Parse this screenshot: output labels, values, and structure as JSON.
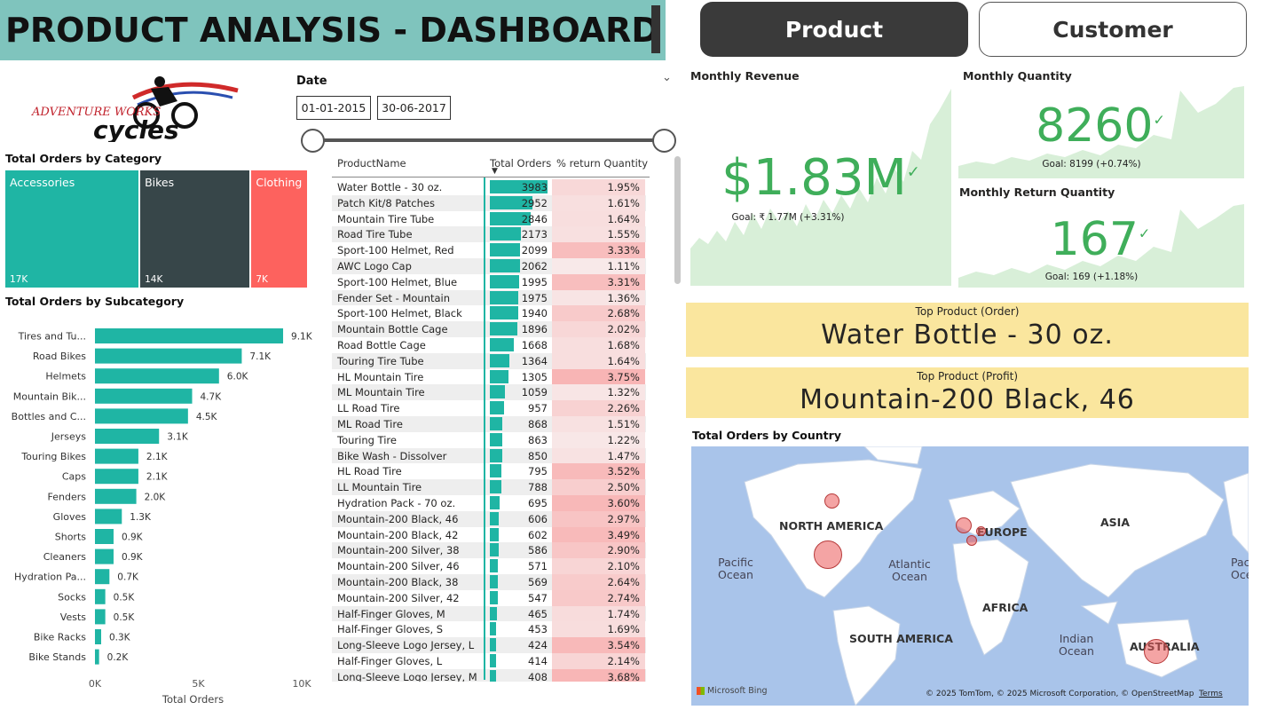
{
  "header": {
    "title": "PRODUCT ANALYSIS - DASHBOARD",
    "nav_product": "Product",
    "nav_customer": "Customer"
  },
  "logo": {
    "line1": "ADVENTURE WORKS",
    "line2": "cycles"
  },
  "date_slicer": {
    "label": "Date",
    "start": "01-01-2015",
    "end": "30-06-2017",
    "range_fraction": [
      0.0,
      1.0
    ]
  },
  "category": {
    "title": "Total Orders by Category",
    "items": [
      {
        "name": "Accessories",
        "label": "17K",
        "value": 17,
        "color": "#1fb5a4"
      },
      {
        "name": "Bikes",
        "label": "14K",
        "value": 14,
        "color": "#374649"
      },
      {
        "name": "Clothing",
        "label": "7K",
        "value": 7,
        "color": "#fd625e"
      }
    ]
  },
  "chart_data": {
    "type": "bar",
    "title": "Total Orders by Subcategory",
    "xlabel": "Total Orders",
    "ylabel": "",
    "xlim": [
      0,
      10000
    ],
    "x_ticks": [
      "0K",
      "5K",
      "10K"
    ],
    "categories": [
      "Tires and Tu...",
      "Road Bikes",
      "Helmets",
      "Mountain Bik...",
      "Bottles and C...",
      "Jerseys",
      "Touring Bikes",
      "Caps",
      "Fenders",
      "Gloves",
      "Shorts",
      "Cleaners",
      "Hydration Pa...",
      "Socks",
      "Vests",
      "Bike Racks",
      "Bike Stands"
    ],
    "values": [
      9100,
      7100,
      6000,
      4700,
      4500,
      3100,
      2100,
      2100,
      2000,
      1300,
      900,
      900,
      700,
      500,
      500,
      300,
      200
    ],
    "data_labels": [
      "9.1K",
      "7.1K",
      "6.0K",
      "4.7K",
      "4.5K",
      "3.1K",
      "2.1K",
      "2.1K",
      "2.0K",
      "1.3K",
      "0.9K",
      "0.9K",
      "0.7K",
      "0.5K",
      "0.5K",
      "0.3K",
      "0.2K"
    ],
    "color": "#1fb5a4"
  },
  "table": {
    "headers": [
      "ProductName",
      "Total Orders",
      "% return Quantity"
    ],
    "max_orders": 3983,
    "rows": [
      [
        "Water Bottle - 30 oz.",
        "3983",
        "1.95%"
      ],
      [
        "Patch Kit/8 Patches",
        "2952",
        "1.61%"
      ],
      [
        "Mountain Tire Tube",
        "2846",
        "1.64%"
      ],
      [
        "Road Tire Tube",
        "2173",
        "1.55%"
      ],
      [
        "Sport-100 Helmet, Red",
        "2099",
        "3.33%"
      ],
      [
        "AWC Logo Cap",
        "2062",
        "1.11%"
      ],
      [
        "Sport-100 Helmet, Blue",
        "1995",
        "3.31%"
      ],
      [
        "Fender Set - Mountain",
        "1975",
        "1.36%"
      ],
      [
        "Sport-100 Helmet, Black",
        "1940",
        "2.68%"
      ],
      [
        "Mountain Bottle Cage",
        "1896",
        "2.02%"
      ],
      [
        "Road Bottle Cage",
        "1668",
        "1.68%"
      ],
      [
        "Touring Tire Tube",
        "1364",
        "1.64%"
      ],
      [
        "HL Mountain Tire",
        "1305",
        "3.75%"
      ],
      [
        "ML Mountain Tire",
        "1059",
        "1.32%"
      ],
      [
        "LL Road Tire",
        "957",
        "2.26%"
      ],
      [
        "ML Road Tire",
        "868",
        "1.51%"
      ],
      [
        "Touring Tire",
        "863",
        "1.22%"
      ],
      [
        "Bike Wash - Dissolver",
        "850",
        "1.47%"
      ],
      [
        "HL Road Tire",
        "795",
        "3.52%"
      ],
      [
        "LL Mountain Tire",
        "788",
        "2.50%"
      ],
      [
        "Hydration Pack - 70 oz.",
        "695",
        "3.60%"
      ],
      [
        "Mountain-200 Black, 46",
        "606",
        "2.97%"
      ],
      [
        "Mountain-200 Black, 42",
        "602",
        "3.49%"
      ],
      [
        "Mountain-200 Silver, 38",
        "586",
        "2.90%"
      ],
      [
        "Mountain-200 Silver, 46",
        "571",
        "2.10%"
      ],
      [
        "Mountain-200 Black, 38",
        "569",
        "2.64%"
      ],
      [
        "Mountain-200 Silver, 42",
        "547",
        "2.74%"
      ],
      [
        "Half-Finger Gloves, M",
        "465",
        "1.74%"
      ],
      [
        "Half-Finger Gloves, S",
        "453",
        "1.69%"
      ],
      [
        "Long-Sleeve Logo Jersey, L",
        "424",
        "3.54%"
      ],
      [
        "Half-Finger Gloves, L",
        "414",
        "2.14%"
      ],
      [
        "Long-Sleeve Logo Jersey, M",
        "408",
        "3.68%"
      ]
    ]
  },
  "kpi": {
    "revenue": {
      "title": "Monthly Revenue",
      "value": "$1.83M",
      "goal": "Goal: ₹ 1.77M (+3.31%)"
    },
    "quantity": {
      "title": "Monthly Quantity",
      "value": "8260",
      "goal": "Goal: 8199 (+0.74%)"
    },
    "returns": {
      "title": "Monthly Return Quantity",
      "value": "167",
      "goal": "Goal: 169 (+1.18%)"
    },
    "check": "✓"
  },
  "top_product_order": {
    "label": "Top Product (Order)",
    "value": "Water Bottle - 30 oz."
  },
  "top_product_profit": {
    "label": "Top Product (Profit)",
    "value": "Mountain-200 Black, 46"
  },
  "map": {
    "title": "Total Orders by Country",
    "continents": [
      "NORTH AMERICA",
      "EUROPE",
      "ASIA",
      "AFRICA",
      "SOUTH AMERICA",
      "AUSTRALIA"
    ],
    "oceans": [
      "Pacific Ocean",
      "Atlantic Ocean",
      "Indian Ocean",
      "Paci Oce"
    ],
    "attribution": "© 2025 TomTom, © 2025 Microsoft Corporation, © OpenStreetMap",
    "terms": "Terms",
    "bing": "Microsoft Bing"
  }
}
